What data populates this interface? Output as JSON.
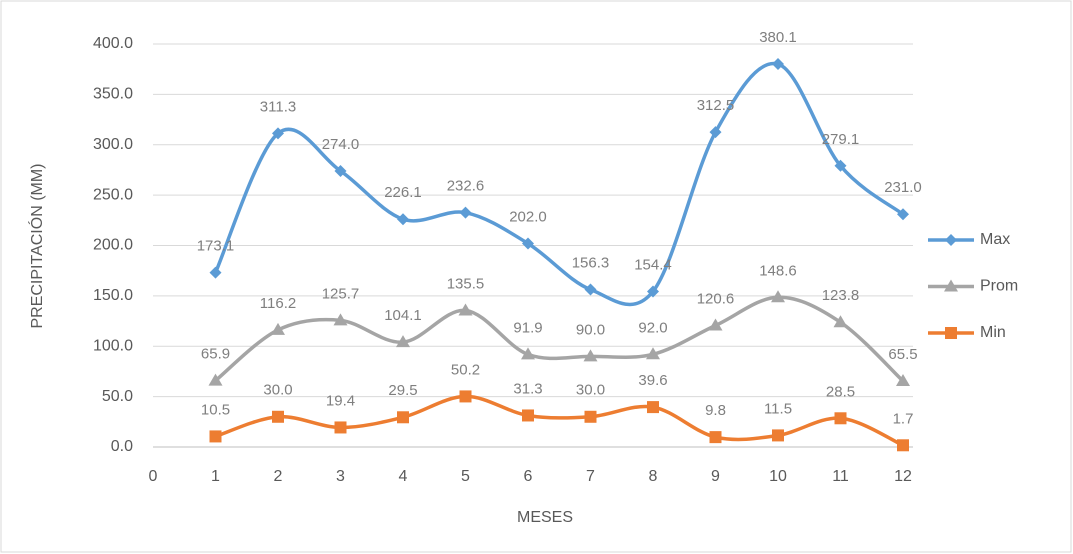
{
  "chart_data": {
    "type": "line",
    "x_label": "MESES",
    "y_label": "PRECIPITACIÓN (MM)",
    "x": [
      1,
      2,
      3,
      4,
      5,
      6,
      7,
      8,
      9,
      10,
      11,
      12
    ],
    "xlim": [
      0,
      12
    ],
    "xticks": [
      0,
      1,
      2,
      3,
      4,
      5,
      6,
      7,
      8,
      9,
      10,
      11,
      12
    ],
    "ylim": [
      0,
      400
    ],
    "yticks": [
      {
        "value": 0,
        "label": "0.0"
      },
      {
        "value": 50,
        "label": "50.0"
      },
      {
        "value": 100,
        "label": "100.0"
      },
      {
        "value": 150,
        "label": "150.0"
      },
      {
        "value": 200,
        "label": "200.0"
      },
      {
        "value": 250,
        "label": "250.0"
      },
      {
        "value": 300,
        "label": "300.0"
      },
      {
        "value": 350,
        "label": "350.0"
      },
      {
        "value": 400,
        "label": "400.0"
      }
    ],
    "grid": true,
    "smooth": true,
    "legend": "right",
    "series": [
      {
        "name": "Max",
        "color": "#5b9bd5",
        "marker": "diamond",
        "values": [
          173.1,
          311.3,
          274.0,
          226.1,
          232.6,
          202.0,
          156.3,
          154.4,
          312.5,
          380.1,
          279.1,
          231.0
        ],
        "value_labels": [
          "173.1",
          "311.3",
          "274.0",
          "226.1",
          "232.6",
          "202.0",
          "156.3",
          "154.4",
          "312.5",
          "380.1",
          "279.1",
          "231.0"
        ]
      },
      {
        "name": "Prom",
        "color": "#a5a5a5",
        "marker": "triangle",
        "values": [
          65.9,
          116.2,
          125.7,
          104.1,
          135.5,
          91.9,
          90.0,
          92.0,
          120.6,
          148.6,
          123.8,
          65.5
        ],
        "value_labels": [
          "65.9",
          "116.2",
          "125.7",
          "104.1",
          "135.5",
          "91.9",
          "90.0",
          "92.0",
          "120.6",
          "148.6",
          "123.8",
          "65.5"
        ]
      },
      {
        "name": "Min",
        "color": "#ed7d31",
        "marker": "square",
        "values": [
          10.5,
          30.0,
          19.4,
          29.5,
          50.2,
          31.3,
          30.0,
          39.6,
          9.8,
          11.5,
          28.5,
          1.7
        ],
        "value_labels": [
          "10.5",
          "30.0",
          "19.4",
          "29.5",
          "50.2",
          "31.3",
          "30.0",
          "39.6",
          "9.8",
          "11.5",
          "28.5",
          "1.7"
        ]
      }
    ]
  }
}
